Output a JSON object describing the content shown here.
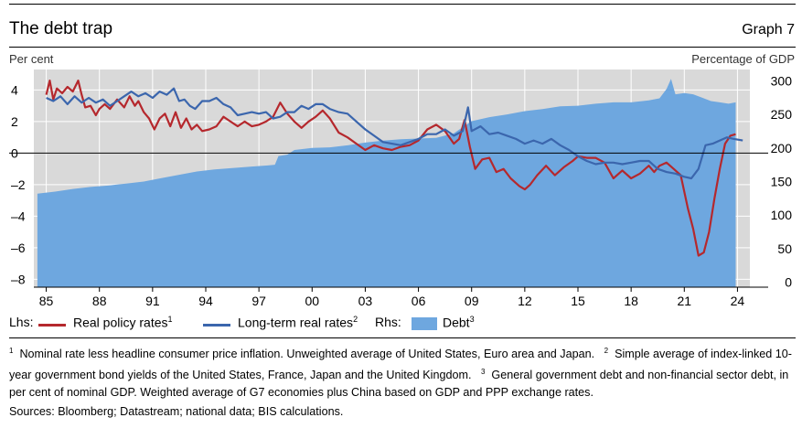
{
  "title": "The debt trap",
  "graph_number": "Graph 7",
  "lhs_unit": "Per cent",
  "rhs_unit": "Percentage of GDP",
  "legend": {
    "lhs_label": "Lhs:",
    "rhs_label": "Rhs:",
    "items": [
      {
        "name": "Real policy rates",
        "sup": "1",
        "color": "#b5282d"
      },
      {
        "name": "Long-term real rates",
        "sup": "2",
        "color": "#3b66ad"
      },
      {
        "name": "Debt",
        "sup": "3",
        "color": "#6ea7df"
      }
    ]
  },
  "footnotes": [
    {
      "sup": "1",
      "text": "Nominal rate less headline consumer price inflation. Unweighted average of United States, Euro area and Japan."
    },
    {
      "sup": "2",
      "text": "Simple average of index-linked 10-year government bond yields of the United States, France, Japan and the United Kingdom."
    },
    {
      "sup": "3",
      "text": "General government debt and non-financial sector debt, in per cent of nominal GDP. Weighted average of G7 economies plus China based on GDP and PPP exchange rates."
    }
  ],
  "sources": "Sources: Bloomberg; Datastream; national data; BIS calculations.",
  "chart_data": {
    "type": "line",
    "xlim": [
      1984.3,
      2024.7
    ],
    "x_ticks": [
      1985,
      1988,
      1991,
      1994,
      1997,
      2000,
      2003,
      2006,
      2009,
      2012,
      2015,
      2018,
      2021,
      2024
    ],
    "x_tick_labels": [
      "85",
      "88",
      "91",
      "94",
      "97",
      "00",
      "03",
      "06",
      "09",
      "12",
      "15",
      "18",
      "21",
      "24"
    ],
    "y_left": {
      "lim": [
        -8.5,
        5.3
      ],
      "ticks": [
        -8,
        -6,
        -4,
        -2,
        0,
        2,
        4
      ],
      "tick_labels": [
        "–8",
        "–6",
        "–4",
        "–2",
        "0",
        "2",
        "4"
      ]
    },
    "y_right": {
      "lim": [
        -7.5,
        317
      ],
      "ticks": [
        0,
        50,
        100,
        150,
        200,
        250,
        300
      ],
      "tick_labels": [
        "0",
        "50",
        "100",
        "150",
        "200",
        "250",
        "300"
      ]
    },
    "zero_line": 0,
    "series": [
      {
        "name": "Real policy rates",
        "axis": "left",
        "style": "line",
        "color": "#b5282d",
        "points": [
          [
            1985.0,
            3.7
          ],
          [
            1985.2,
            4.6
          ],
          [
            1985.4,
            3.4
          ],
          [
            1985.6,
            4.1
          ],
          [
            1985.9,
            3.8
          ],
          [
            1986.2,
            4.2
          ],
          [
            1986.5,
            3.9
          ],
          [
            1986.8,
            4.6
          ],
          [
            1987.0,
            3.7
          ],
          [
            1987.2,
            2.9
          ],
          [
            1987.5,
            3.0
          ],
          [
            1987.8,
            2.4
          ],
          [
            1988.0,
            2.8
          ],
          [
            1988.3,
            3.1
          ],
          [
            1988.6,
            2.8
          ],
          [
            1989.0,
            3.4
          ],
          [
            1989.4,
            2.9
          ],
          [
            1989.7,
            3.6
          ],
          [
            1990.0,
            3.0
          ],
          [
            1990.2,
            3.3
          ],
          [
            1990.5,
            2.6
          ],
          [
            1990.8,
            2.2
          ],
          [
            1991.1,
            1.5
          ],
          [
            1991.4,
            2.2
          ],
          [
            1991.7,
            2.5
          ],
          [
            1992.0,
            1.7
          ],
          [
            1992.3,
            2.6
          ],
          [
            1992.6,
            1.6
          ],
          [
            1992.9,
            2.2
          ],
          [
            1993.2,
            1.5
          ],
          [
            1993.5,
            1.8
          ],
          [
            1993.8,
            1.4
          ],
          [
            1994.2,
            1.5
          ],
          [
            1994.6,
            1.7
          ],
          [
            1995.0,
            2.3
          ],
          [
            1995.4,
            2.0
          ],
          [
            1995.8,
            1.7
          ],
          [
            1996.2,
            2.0
          ],
          [
            1996.6,
            1.7
          ],
          [
            1997.0,
            1.8
          ],
          [
            1997.4,
            2.0
          ],
          [
            1997.8,
            2.3
          ],
          [
            1998.2,
            3.2
          ],
          [
            1998.6,
            2.5
          ],
          [
            1999.0,
            2.0
          ],
          [
            1999.4,
            1.6
          ],
          [
            1999.8,
            2.0
          ],
          [
            2000.2,
            2.3
          ],
          [
            2000.6,
            2.7
          ],
          [
            2001.0,
            2.2
          ],
          [
            2001.5,
            1.3
          ],
          [
            2002.0,
            1.0
          ],
          [
            2002.5,
            0.6
          ],
          [
            2003.0,
            0.2
          ],
          [
            2003.5,
            0.5
          ],
          [
            2004.0,
            0.3
          ],
          [
            2004.5,
            0.2
          ],
          [
            2005.0,
            0.4
          ],
          [
            2005.5,
            0.5
          ],
          [
            2006.0,
            0.8
          ],
          [
            2006.5,
            1.5
          ],
          [
            2007.0,
            1.8
          ],
          [
            2007.5,
            1.4
          ],
          [
            2008.0,
            0.6
          ],
          [
            2008.3,
            0.9
          ],
          [
            2008.6,
            2.1
          ],
          [
            2008.9,
            0.4
          ],
          [
            2009.2,
            -1.0
          ],
          [
            2009.6,
            -0.4
          ],
          [
            2010.0,
            -0.3
          ],
          [
            2010.4,
            -1.2
          ],
          [
            2010.8,
            -1.0
          ],
          [
            2011.2,
            -1.6
          ],
          [
            2011.7,
            -2.1
          ],
          [
            2012.0,
            -2.3
          ],
          [
            2012.3,
            -2.0
          ],
          [
            2012.7,
            -1.4
          ],
          [
            2013.2,
            -0.8
          ],
          [
            2013.7,
            -1.4
          ],
          [
            2014.2,
            -0.9
          ],
          [
            2014.7,
            -0.5
          ],
          [
            2015.0,
            -0.2
          ],
          [
            2015.5,
            -0.3
          ],
          [
            2016.0,
            -0.3
          ],
          [
            2016.5,
            -0.6
          ],
          [
            2017.0,
            -1.6
          ],
          [
            2017.5,
            -1.1
          ],
          [
            2018.0,
            -1.6
          ],
          [
            2018.5,
            -1.3
          ],
          [
            2019.0,
            -0.8
          ],
          [
            2019.3,
            -1.2
          ],
          [
            2019.6,
            -0.8
          ],
          [
            2020.0,
            -0.6
          ],
          [
            2020.4,
            -1.0
          ],
          [
            2020.8,
            -1.4
          ],
          [
            2021.2,
            -3.5
          ],
          [
            2021.5,
            -4.8
          ],
          [
            2021.8,
            -6.5
          ],
          [
            2022.1,
            -6.3
          ],
          [
            2022.4,
            -5.0
          ],
          [
            2022.7,
            -2.9
          ],
          [
            2023.0,
            -1.0
          ],
          [
            2023.3,
            0.6
          ],
          [
            2023.6,
            1.1
          ],
          [
            2023.9,
            1.2
          ]
        ]
      },
      {
        "name": "Long-term real rates",
        "axis": "left",
        "style": "line",
        "color": "#3b66ad",
        "points": [
          [
            1985.0,
            3.5
          ],
          [
            1985.4,
            3.3
          ],
          [
            1985.8,
            3.6
          ],
          [
            1986.2,
            3.1
          ],
          [
            1986.6,
            3.6
          ],
          [
            1987.0,
            3.2
          ],
          [
            1987.4,
            3.5
          ],
          [
            1987.8,
            3.2
          ],
          [
            1988.2,
            3.4
          ],
          [
            1988.6,
            3.0
          ],
          [
            1989.0,
            3.3
          ],
          [
            1989.4,
            3.6
          ],
          [
            1989.8,
            3.9
          ],
          [
            1990.2,
            3.6
          ],
          [
            1990.6,
            3.8
          ],
          [
            1991.0,
            3.5
          ],
          [
            1991.4,
            3.9
          ],
          [
            1991.8,
            3.7
          ],
          [
            1992.2,
            4.1
          ],
          [
            1992.5,
            3.3
          ],
          [
            1992.8,
            3.4
          ],
          [
            1993.1,
            3.0
          ],
          [
            1993.4,
            2.8
          ],
          [
            1993.8,
            3.3
          ],
          [
            1994.2,
            3.3
          ],
          [
            1994.6,
            3.5
          ],
          [
            1995.0,
            3.1
          ],
          [
            1995.4,
            2.9
          ],
          [
            1995.8,
            2.4
          ],
          [
            1996.2,
            2.5
          ],
          [
            1996.6,
            2.6
          ],
          [
            1997.0,
            2.5
          ],
          [
            1997.4,
            2.6
          ],
          [
            1997.8,
            2.2
          ],
          [
            1998.2,
            2.3
          ],
          [
            1998.6,
            2.6
          ],
          [
            1999.0,
            2.6
          ],
          [
            1999.4,
            3.0
          ],
          [
            1999.8,
            2.8
          ],
          [
            2000.2,
            3.1
          ],
          [
            2000.6,
            3.1
          ],
          [
            2001.0,
            2.8
          ],
          [
            2001.5,
            2.6
          ],
          [
            2002.0,
            2.5
          ],
          [
            2002.5,
            2.0
          ],
          [
            2003.0,
            1.5
          ],
          [
            2003.5,
            1.1
          ],
          [
            2004.0,
            0.7
          ],
          [
            2004.5,
            0.6
          ],
          [
            2005.0,
            0.5
          ],
          [
            2005.5,
            0.7
          ],
          [
            2006.0,
            0.9
          ],
          [
            2006.5,
            1.2
          ],
          [
            2007.0,
            1.2
          ],
          [
            2007.5,
            1.5
          ],
          [
            2008.0,
            1.1
          ],
          [
            2008.5,
            1.4
          ],
          [
            2008.8,
            2.9
          ],
          [
            2009.0,
            1.4
          ],
          [
            2009.5,
            1.7
          ],
          [
            2010.0,
            1.2
          ],
          [
            2010.5,
            1.3
          ],
          [
            2011.0,
            1.1
          ],
          [
            2011.5,
            0.9
          ],
          [
            2012.0,
            0.6
          ],
          [
            2012.5,
            0.8
          ],
          [
            2013.0,
            0.6
          ],
          [
            2013.5,
            0.9
          ],
          [
            2014.0,
            0.5
          ],
          [
            2014.5,
            0.2
          ],
          [
            2015.0,
            -0.2
          ],
          [
            2015.5,
            -0.5
          ],
          [
            2016.0,
            -0.7
          ],
          [
            2016.5,
            -0.6
          ],
          [
            2017.0,
            -0.6
          ],
          [
            2017.5,
            -0.7
          ],
          [
            2018.0,
            -0.6
          ],
          [
            2018.5,
            -0.5
          ],
          [
            2019.0,
            -0.5
          ],
          [
            2019.5,
            -1.0
          ],
          [
            2020.0,
            -1.2
          ],
          [
            2020.5,
            -1.3
          ],
          [
            2021.0,
            -1.5
          ],
          [
            2021.4,
            -1.6
          ],
          [
            2021.8,
            -1.0
          ],
          [
            2022.2,
            0.5
          ],
          [
            2022.6,
            0.6
          ],
          [
            2023.0,
            0.8
          ],
          [
            2023.4,
            1.0
          ],
          [
            2023.8,
            0.9
          ],
          [
            2024.3,
            0.8
          ]
        ]
      },
      {
        "name": "Debt",
        "axis": "right",
        "style": "area",
        "color": "#6ea7df",
        "points": [
          [
            1984.5,
            132
          ],
          [
            1985.5,
            135
          ],
          [
            1986.5,
            139
          ],
          [
            1987.5,
            142
          ],
          [
            1988.5,
            144
          ],
          [
            1989.5,
            147
          ],
          [
            1990.5,
            150
          ],
          [
            1991.5,
            155
          ],
          [
            1992.5,
            160
          ],
          [
            1993.5,
            165
          ],
          [
            1994.5,
            168
          ],
          [
            1995.5,
            170
          ],
          [
            1996.5,
            172
          ],
          [
            1997.5,
            174
          ],
          [
            1997.9,
            175
          ],
          [
            1998.1,
            188
          ],
          [
            1998.6,
            190
          ],
          [
            1999.0,
            197
          ],
          [
            2000.0,
            200
          ],
          [
            2001.0,
            201
          ],
          [
            2002.0,
            204
          ],
          [
            2003.0,
            208
          ],
          [
            2004.0,
            211
          ],
          [
            2005.0,
            213
          ],
          [
            2006.0,
            214
          ],
          [
            2007.0,
            215
          ],
          [
            2008.0,
            222
          ],
          [
            2009.0,
            240
          ],
          [
            2010.0,
            246
          ],
          [
            2011.0,
            250
          ],
          [
            2012.0,
            255
          ],
          [
            2013.0,
            258
          ],
          [
            2014.0,
            262
          ],
          [
            2015.0,
            263
          ],
          [
            2016.0,
            266
          ],
          [
            2017.0,
            268
          ],
          [
            2018.0,
            268
          ],
          [
            2019.0,
            271
          ],
          [
            2019.6,
            274
          ],
          [
            2020.0,
            288
          ],
          [
            2020.25,
            303
          ],
          [
            2020.5,
            280
          ],
          [
            2021.0,
            282
          ],
          [
            2021.5,
            280
          ],
          [
            2022.0,
            275
          ],
          [
            2022.5,
            270
          ],
          [
            2023.0,
            268
          ],
          [
            2023.5,
            266
          ],
          [
            2023.9,
            268
          ]
        ]
      }
    ]
  }
}
